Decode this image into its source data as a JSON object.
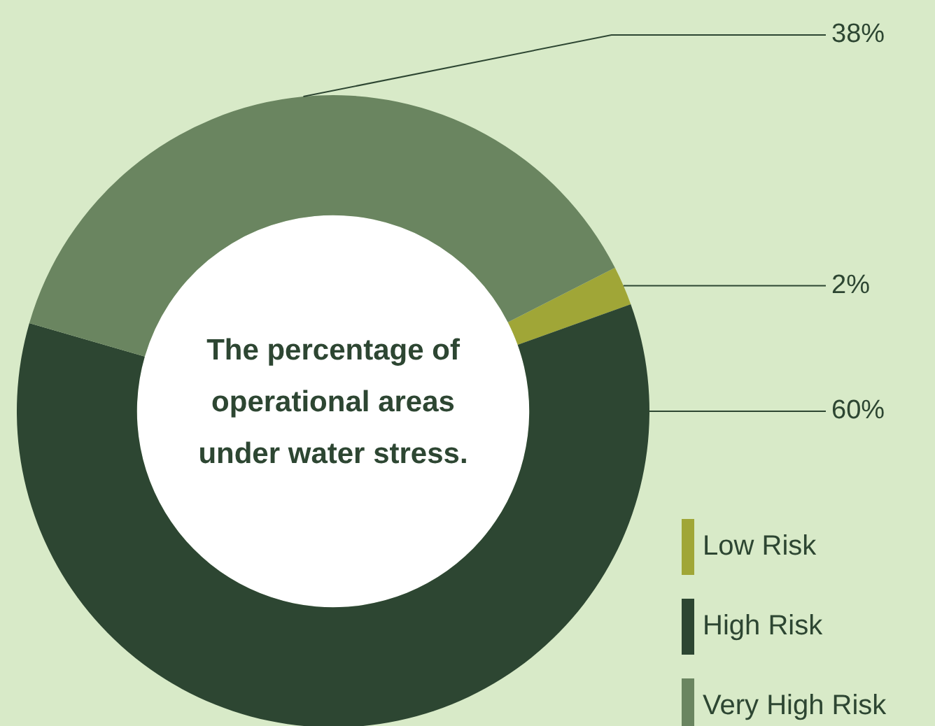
{
  "chart_data": {
    "type": "donut",
    "title": "The percentage of operational areas under water stress.",
    "categories": [
      "Low Risk",
      "High Risk",
      "Very High Risk"
    ],
    "values": [
      2,
      60,
      38
    ],
    "colors": [
      "#a0a637",
      "#2d4632",
      "#6a8560"
    ],
    "value_labels": [
      "2%",
      "60%",
      "38%"
    ],
    "legend": "bottom right"
  }
}
